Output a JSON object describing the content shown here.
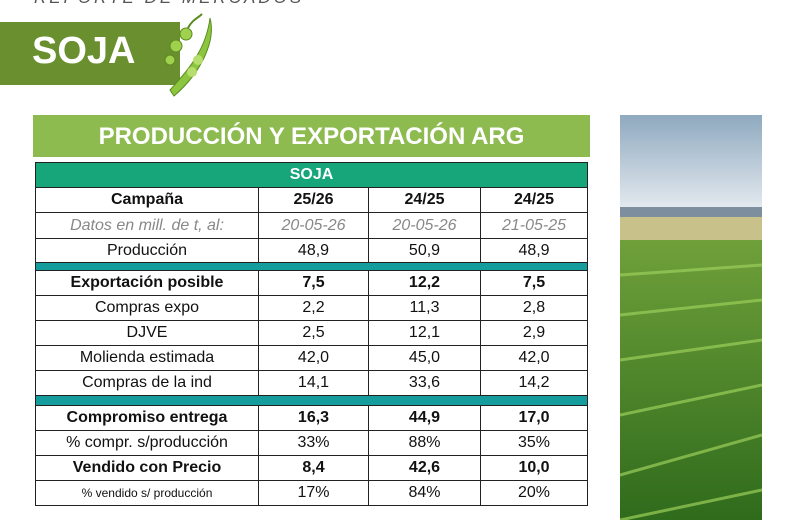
{
  "header": {
    "report": "REPORTE DE MERCADOS",
    "title": "SOJA"
  },
  "section_title": "PRODUCCIÓN Y EXPORTACIÓN ARG",
  "table": {
    "caption": "SOJA",
    "columns": [
      "Campaña",
      "25/26",
      "24/25",
      "24/25"
    ],
    "dates": [
      "Datos en mill. de t, al:",
      "20-05-26",
      "20-05-26",
      "21-05-25"
    ],
    "groups": [
      [
        [
          "Producción",
          "48,9",
          "50,9",
          "48,9"
        ]
      ],
      [
        [
          "Exportación posible",
          "7,5",
          "12,2",
          "7,5"
        ],
        [
          "Compras expo",
          "2,2",
          "11,3",
          "2,8"
        ],
        [
          "DJVE",
          "2,5",
          "12,1",
          "2,9"
        ],
        [
          "Molienda estimada",
          "42,0",
          "45,0",
          "42,0"
        ],
        [
          "Compras de la ind",
          "14,1",
          "33,6",
          "14,2"
        ]
      ],
      [
        [
          "Compromiso entrega",
          "16,3",
          "44,9",
          "17,0"
        ],
        [
          "% compr. s/producción",
          "33%",
          "88%",
          "35%"
        ],
        [
          "Vendido con Precio",
          "8,4",
          "42,6",
          "10,0"
        ],
        [
          "% vendido s/ producción",
          "17%",
          "84%",
          "20%"
        ]
      ]
    ]
  }
}
